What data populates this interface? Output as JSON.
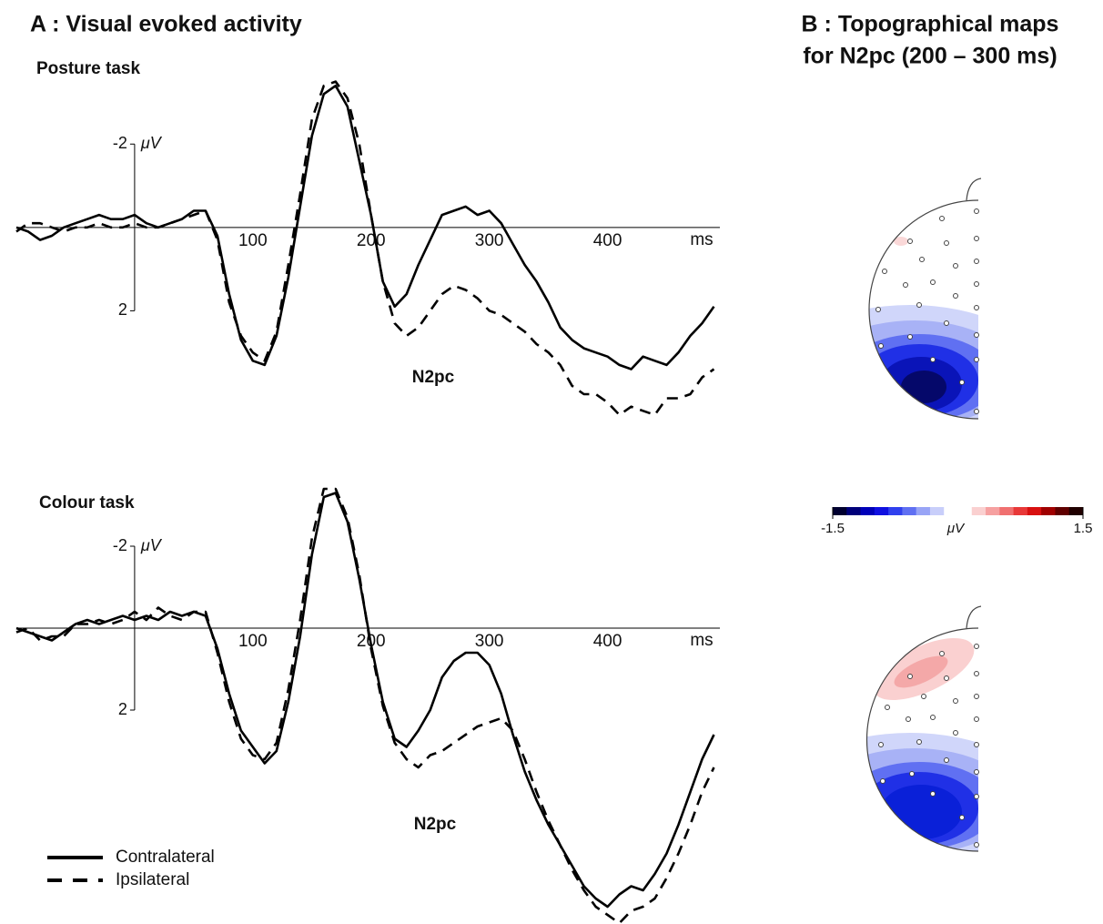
{
  "panel_a_title": "A : Visual evoked activity",
  "panel_b_title": [
    "B : Topographical maps",
    "for N2pc (200 – 300 ms)"
  ],
  "colorbar": {
    "min": -1.5,
    "max": 1.5,
    "label": "μV",
    "colors": [
      "#000030",
      "#00007a",
      "#0000b8",
      "#1010e0",
      "#3040ee",
      "#6070f2",
      "#98a4f6",
      "#c8cefa",
      "#ffffff",
      "#ffffff",
      "#fad0d0",
      "#f6a0a0",
      "#f07070",
      "#e83838",
      "#d81010",
      "#a00000",
      "#600000",
      "#200000"
    ]
  },
  "chart_data": [
    {
      "type": "line",
      "title": "Posture task",
      "annotation": "N2pc",
      "y_label": "μV",
      "x_label": "ms",
      "inverted_y": true,
      "x": [
        -100,
        -90,
        -80,
        -70,
        -60,
        -50,
        -40,
        -30,
        -20,
        -10,
        0,
        10,
        20,
        30,
        40,
        50,
        60,
        70,
        80,
        90,
        100,
        110,
        120,
        130,
        140,
        150,
        160,
        170,
        180,
        190,
        200,
        210,
        220,
        230,
        240,
        250,
        260,
        270,
        280,
        290,
        300,
        310,
        320,
        330,
        340,
        350,
        360,
        370,
        380,
        390,
        400,
        410,
        420,
        430,
        440,
        450,
        460,
        470,
        480,
        490
      ],
      "xlim": [
        -100,
        495
      ],
      "xticks": [
        100,
        200,
        300,
        400
      ],
      "ylim": [
        -3.6,
        4.7
      ],
      "yticks": [
        -2,
        2
      ],
      "series": [
        {
          "name": "Contralateral",
          "color": "#000000",
          "style": "solid",
          "values": [
            0.0,
            0.1,
            0.3,
            0.2,
            0.0,
            -0.1,
            -0.2,
            -0.3,
            -0.2,
            -0.2,
            -0.3,
            -0.1,
            0.0,
            -0.1,
            -0.2,
            -0.4,
            -0.4,
            0.2,
            1.6,
            2.7,
            3.2,
            3.3,
            2.6,
            1.2,
            -0.5,
            -2.2,
            -3.2,
            -3.4,
            -2.9,
            -1.6,
            -0.3,
            1.3,
            1.9,
            1.6,
            0.9,
            0.3,
            -0.3,
            -0.4,
            -0.5,
            -0.3,
            -0.4,
            -0.1,
            0.4,
            0.9,
            1.3,
            1.8,
            2.4,
            2.7,
            2.9,
            3.0,
            3.1,
            3.3,
            3.4,
            3.1,
            3.2,
            3.3,
            3.0,
            2.6,
            2.3,
            1.9
          ]
        },
        {
          "name": "Ipsilateral",
          "color": "#000000",
          "style": "dashed",
          "values": [
            0.1,
            -0.1,
            -0.1,
            0.0,
            0.1,
            0.0,
            0.0,
            -0.1,
            0.0,
            0.0,
            -0.1,
            0.0,
            0.0,
            -0.1,
            -0.2,
            -0.3,
            -0.4,
            0.3,
            1.8,
            2.6,
            3.0,
            3.2,
            2.5,
            0.9,
            -0.8,
            -2.6,
            -3.4,
            -3.5,
            -3.1,
            -2.0,
            -0.3,
            1.3,
            2.3,
            2.6,
            2.4,
            2.0,
            1.6,
            1.4,
            1.5,
            1.7,
            2.0,
            2.1,
            2.3,
            2.5,
            2.8,
            3.0,
            3.3,
            3.8,
            4.0,
            4.0,
            4.2,
            4.5,
            4.3,
            4.4,
            4.5,
            4.1,
            4.1,
            4.0,
            3.6,
            3.4
          ]
        }
      ]
    },
    {
      "type": "line",
      "title": "Colour task",
      "annotation": "N2pc",
      "y_label": "μV",
      "x_label": "ms",
      "inverted_y": true,
      "legend": "lower left",
      "x": [
        -100,
        -90,
        -80,
        -70,
        -60,
        -50,
        -40,
        -30,
        -20,
        -10,
        0,
        10,
        20,
        30,
        40,
        50,
        60,
        70,
        80,
        90,
        100,
        110,
        120,
        130,
        140,
        150,
        160,
        170,
        180,
        190,
        200,
        210,
        220,
        230,
        240,
        250,
        260,
        270,
        280,
        290,
        300,
        310,
        320,
        330,
        340,
        350,
        360,
        370,
        380,
        390,
        400,
        410,
        420,
        430,
        440,
        450,
        460,
        470,
        480,
        490
      ],
      "xlim": [
        -100,
        495
      ],
      "xticks": [
        100,
        200,
        300,
        400
      ],
      "ylim": [
        -3.6,
        7.2
      ],
      "yticks": [
        -2,
        2
      ],
      "series": [
        {
          "name": "Contralateral",
          "color": "#000000",
          "style": "solid",
          "values": [
            0.0,
            0.1,
            0.2,
            0.3,
            0.1,
            -0.1,
            -0.2,
            -0.1,
            -0.2,
            -0.3,
            -0.2,
            -0.3,
            -0.2,
            -0.4,
            -0.3,
            -0.4,
            -0.3,
            0.5,
            1.6,
            2.5,
            2.9,
            3.3,
            3.0,
            1.8,
            0.2,
            -1.8,
            -3.2,
            -3.3,
            -2.6,
            -1.2,
            0.4,
            1.8,
            2.7,
            2.9,
            2.5,
            2.0,
            1.2,
            0.8,
            0.6,
            0.6,
            0.9,
            1.6,
            2.6,
            3.5,
            4.2,
            4.8,
            5.3,
            5.8,
            6.3,
            6.6,
            6.8,
            6.5,
            6.3,
            6.4,
            6.0,
            5.5,
            4.8,
            4.0,
            3.2,
            2.6
          ]
        },
        {
          "name": "Ipsilateral",
          "color": "#000000",
          "style": "dashed",
          "values": [
            0.1,
            0.0,
            0.3,
            0.2,
            0.2,
            -0.1,
            -0.1,
            -0.2,
            -0.1,
            -0.2,
            -0.4,
            -0.2,
            -0.5,
            -0.3,
            -0.2,
            -0.4,
            -0.4,
            0.6,
            1.8,
            2.7,
            3.1,
            3.2,
            2.8,
            1.5,
            -0.2,
            -2.2,
            -3.4,
            -3.4,
            -2.7,
            -1.3,
            0.5,
            1.9,
            2.8,
            3.2,
            3.4,
            3.1,
            3.0,
            2.8,
            2.6,
            2.4,
            2.3,
            2.2,
            2.5,
            3.2,
            4.0,
            4.7,
            5.3,
            5.9,
            6.4,
            6.8,
            7.0,
            7.2,
            6.9,
            6.8,
            6.6,
            6.1,
            5.5,
            4.8,
            4.0,
            3.4
          ]
        }
      ]
    }
  ]
}
